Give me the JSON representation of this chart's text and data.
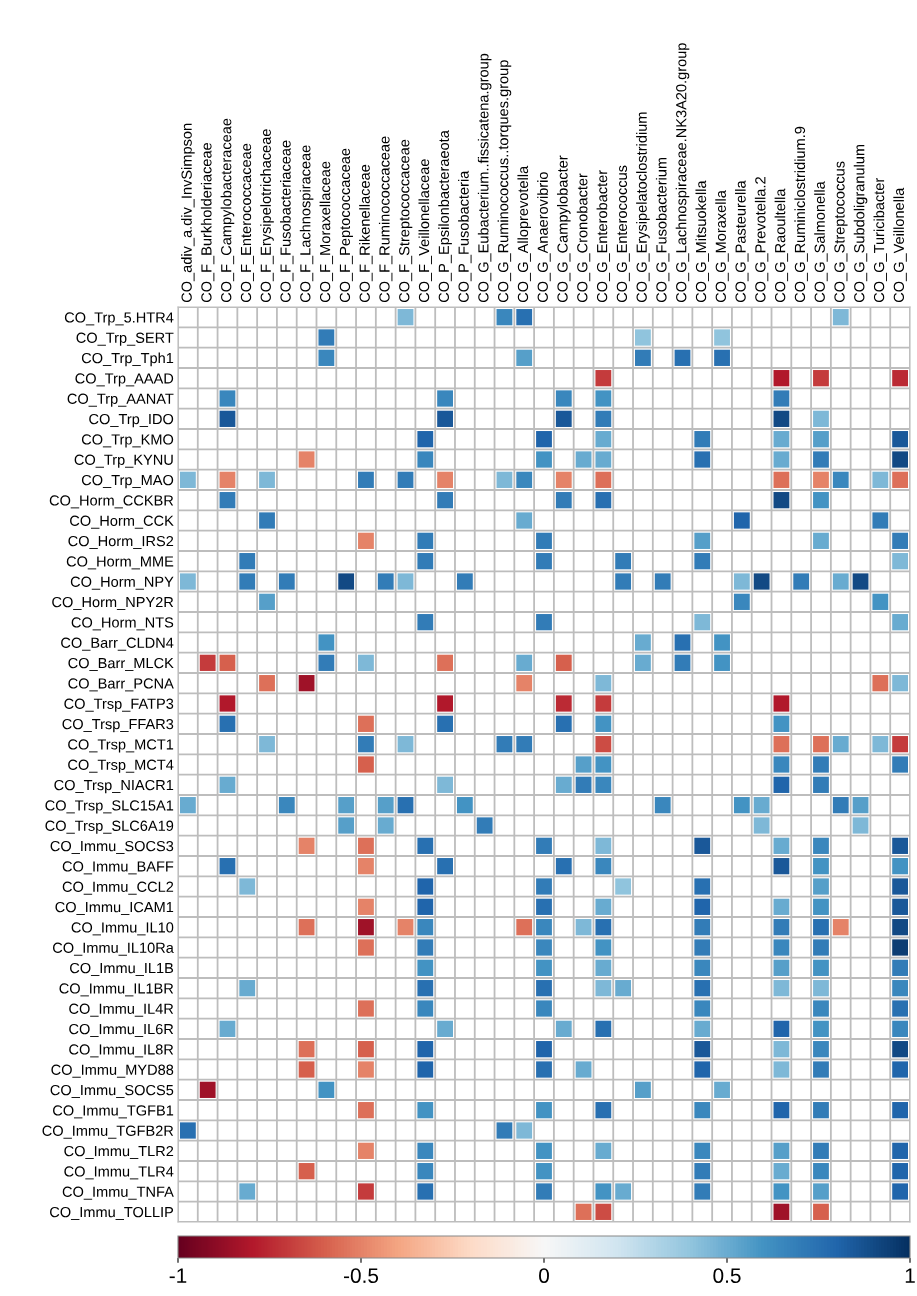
{
  "chart_data": {
    "type": "heatmap",
    "categories": [
      "CO_adiv_a.div_InvSimpson",
      "CO_F_Burkholderiaceae",
      "CO_F_Campylobacteraceae",
      "CO_F_Enterococcaceae",
      "CO_F_Erysipelotrichaceae",
      "CO_F_Fusobacteriaceae",
      "CO_F_Lachnospiraceae",
      "CO_F_Moraxellaceae",
      "CO_F_Peptococcaceae",
      "CO_F_Rikenellaceae",
      "CO_F_Ruminococcaceae",
      "CO_F_Streptococcaceae",
      "CO_F_Veillonellaceae",
      "CO_P_Epsilonbacteraeota",
      "CO_P_Fusobacteria",
      "CO_G_Eubacterium..fissicatena.group",
      "CO_G_Ruminococcus..torques.group",
      "CO_G_Alloprevotella",
      "CO_G_Anaerovibrio",
      "CO_G_Campylobacter",
      "CO_G_Cronobacter",
      "CO_G_Enterobacter",
      "CO_G_Enterococcus",
      "CO_G_Erysipelatoclostridium",
      "CO_G_Fusobacterium",
      "CO_G_Lachnospiraceae.NK3A20.group",
      "CO_G_Mitsuokella",
      "CO_G_Moraxella",
      "CO_G_Pasteurella",
      "CO_G_Prevotella.2",
      "CO_G_Raoultella",
      "CO_G_Ruminiclostridium.9",
      "CO_G_Salmonella",
      "CO_G_Streptococcus",
      "CO_G_Subdoligranulum",
      "CO_G_Turicibacter",
      "CO_G_Veillonella"
    ],
    "y_categories": [
      "CO_Trp_5.HTR4",
      "CO_Trp_SERT",
      "CO_Trp_Tph1",
      "CO_Trp_AAAD",
      "CO_Trp_AANAT",
      "CO_Trp_IDO",
      "CO_Trp_KMO",
      "CO_Trp_KYNU",
      "CO_Trp_MAO",
      "CO_Horm_CCKBR",
      "CO_Horm_CCK",
      "CO_Horm_IRS2",
      "CO_Horm_MME",
      "CO_Horm_NPY",
      "CO_Horm_NPY2R",
      "CO_Horm_NTS",
      "CO_Barr_CLDN4",
      "CO_Barr_MLCK",
      "CO_Barr_PCNA",
      "CO_Trsp_FATP3",
      "CO_Trsp_FFAR3",
      "CO_Trsp_MCT1",
      "CO_Trsp_MCT4",
      "CO_Trsp_NIACR1",
      "CO_Trsp_SLC15A1",
      "CO_Trsp_SLC6A19",
      "CO_Immu_SOCS3",
      "CO_Immu_BAFF",
      "CO_Immu_CCL2",
      "CO_Immu_ICAM1",
      "CO_Immu_IL10",
      "CO_Immu_IL10Ra",
      "CO_Immu_IL1B",
      "CO_Immu_IL1BR",
      "CO_Immu_IL4R",
      "CO_Immu_IL6R",
      "CO_Immu_IL8R",
      "CO_Immu_MYD88",
      "CO_Immu_SOCS5",
      "CO_Immu_TGFB1",
      "CO_Immu_TGFB2R",
      "CO_Immu_TLR2",
      "CO_Immu_TLR4",
      "CO_Immu_TNFA",
      "CO_Immu_TOLLIP"
    ],
    "cells": [
      [
        null,
        null,
        null,
        null,
        null,
        null,
        null,
        null,
        null,
        null,
        null,
        0.45,
        null,
        null,
        null,
        null,
        0.65,
        0.75,
        null,
        null,
        null,
        null,
        null,
        null,
        null,
        null,
        null,
        null,
        null,
        null,
        null,
        null,
        null,
        0.45,
        null,
        null,
        null
      ],
      [
        null,
        null,
        null,
        null,
        null,
        null,
        null,
        0.7,
        null,
        null,
        null,
        null,
        null,
        null,
        null,
        null,
        null,
        null,
        null,
        null,
        null,
        null,
        null,
        0.4,
        null,
        null,
        null,
        0.4,
        null,
        null,
        null,
        null,
        null,
        null,
        null,
        null,
        null
      ],
      [
        null,
        null,
        null,
        null,
        null,
        null,
        null,
        0.65,
        null,
        null,
        null,
        null,
        null,
        null,
        null,
        null,
        null,
        0.55,
        null,
        null,
        null,
        null,
        null,
        0.7,
        null,
        0.75,
        null,
        0.75,
        null,
        null,
        null,
        null,
        null,
        null,
        null,
        null,
        null
      ],
      [
        null,
        null,
        null,
        null,
        null,
        null,
        null,
        null,
        null,
        null,
        null,
        null,
        null,
        null,
        null,
        null,
        null,
        null,
        null,
        null,
        null,
        -0.7,
        null,
        null,
        null,
        null,
        null,
        null,
        null,
        null,
        -0.8,
        null,
        -0.7,
        null,
        null,
        null,
        -0.75
      ],
      [
        null,
        null,
        0.65,
        null,
        null,
        null,
        null,
        null,
        null,
        null,
        null,
        null,
        null,
        0.65,
        null,
        null,
        null,
        null,
        null,
        0.65,
        null,
        0.6,
        null,
        null,
        null,
        null,
        null,
        null,
        null,
        null,
        0.7,
        null,
        null,
        null,
        null,
        null,
        null
      ],
      [
        null,
        null,
        0.85,
        null,
        null,
        null,
        null,
        null,
        null,
        null,
        null,
        null,
        null,
        0.85,
        null,
        null,
        null,
        null,
        null,
        0.85,
        null,
        0.7,
        null,
        null,
        null,
        null,
        null,
        null,
        null,
        null,
        0.9,
        null,
        0.45,
        null,
        null,
        null,
        null
      ],
      [
        null,
        null,
        null,
        null,
        null,
        null,
        null,
        null,
        null,
        null,
        null,
        null,
        0.8,
        null,
        null,
        null,
        null,
        null,
        0.8,
        null,
        null,
        0.5,
        null,
        null,
        null,
        null,
        0.7,
        null,
        null,
        null,
        0.5,
        null,
        0.55,
        null,
        null,
        null,
        0.85
      ],
      [
        null,
        null,
        null,
        null,
        null,
        null,
        -0.5,
        null,
        null,
        null,
        null,
        null,
        0.65,
        null,
        null,
        null,
        null,
        null,
        0.6,
        null,
        0.5,
        0.5,
        null,
        null,
        null,
        null,
        0.75,
        null,
        null,
        null,
        0.5,
        null,
        0.7,
        null,
        null,
        null,
        0.9
      ],
      [
        0.45,
        null,
        -0.5,
        null,
        0.45,
        null,
        null,
        null,
        null,
        0.7,
        null,
        0.7,
        null,
        -0.5,
        null,
        null,
        0.45,
        0.65,
        null,
        -0.5,
        null,
        -0.55,
        null,
        null,
        null,
        null,
        null,
        null,
        null,
        null,
        -0.55,
        null,
        -0.5,
        0.65,
        null,
        0.45,
        -0.55
      ],
      [
        null,
        null,
        0.7,
        null,
        null,
        null,
        null,
        null,
        null,
        null,
        null,
        null,
        null,
        0.7,
        null,
        null,
        null,
        null,
        null,
        0.7,
        null,
        0.75,
        null,
        null,
        null,
        null,
        null,
        null,
        null,
        null,
        0.9,
        null,
        0.6,
        null,
        null,
        null,
        null
      ],
      [
        null,
        null,
        null,
        null,
        0.7,
        null,
        null,
        null,
        null,
        null,
        null,
        null,
        null,
        null,
        null,
        null,
        null,
        0.5,
        null,
        null,
        null,
        null,
        null,
        null,
        null,
        null,
        null,
        null,
        0.8,
        null,
        null,
        null,
        null,
        null,
        null,
        0.7,
        null
      ],
      [
        null,
        null,
        null,
        null,
        null,
        null,
        null,
        null,
        null,
        -0.5,
        null,
        null,
        0.7,
        null,
        null,
        null,
        null,
        null,
        0.7,
        null,
        null,
        null,
        null,
        null,
        null,
        null,
        0.55,
        null,
        null,
        null,
        null,
        null,
        0.5,
        null,
        null,
        null,
        0.7
      ],
      [
        null,
        null,
        null,
        0.7,
        null,
        null,
        null,
        null,
        null,
        null,
        null,
        null,
        0.7,
        null,
        null,
        null,
        null,
        null,
        0.7,
        null,
        null,
        null,
        0.7,
        null,
        null,
        null,
        0.7,
        null,
        null,
        null,
        null,
        null,
        null,
        null,
        null,
        null,
        0.45
      ],
      [
        0.45,
        null,
        null,
        0.7,
        null,
        0.7,
        null,
        null,
        0.9,
        null,
        0.7,
        0.45,
        null,
        null,
        0.7,
        null,
        null,
        null,
        null,
        null,
        null,
        null,
        0.7,
        null,
        0.7,
        null,
        null,
        null,
        0.45,
        0.9,
        null,
        0.7,
        null,
        0.5,
        0.9,
        null,
        null
      ],
      [
        null,
        null,
        null,
        null,
        0.55,
        null,
        null,
        null,
        null,
        null,
        null,
        null,
        null,
        null,
        null,
        null,
        null,
        null,
        null,
        null,
        null,
        null,
        null,
        null,
        null,
        null,
        null,
        null,
        0.65,
        null,
        null,
        null,
        null,
        null,
        null,
        0.6,
        null
      ],
      [
        null,
        null,
        null,
        null,
        null,
        null,
        null,
        null,
        null,
        null,
        null,
        null,
        0.7,
        null,
        null,
        null,
        null,
        null,
        0.7,
        null,
        null,
        null,
        null,
        null,
        null,
        null,
        0.45,
        null,
        null,
        null,
        null,
        null,
        null,
        null,
        null,
        null,
        0.5
      ],
      [
        null,
        null,
        null,
        null,
        null,
        null,
        null,
        0.6,
        null,
        null,
        null,
        null,
        null,
        null,
        null,
        null,
        null,
        null,
        null,
        null,
        null,
        null,
        null,
        0.5,
        null,
        0.75,
        null,
        0.6,
        null,
        null,
        null,
        null,
        null,
        null,
        null,
        null,
        null
      ],
      [
        null,
        -0.7,
        -0.6,
        null,
        null,
        null,
        null,
        0.7,
        null,
        0.45,
        null,
        null,
        null,
        -0.55,
        null,
        null,
        null,
        0.5,
        null,
        -0.6,
        null,
        null,
        null,
        0.5,
        null,
        0.7,
        null,
        0.6,
        null,
        null,
        null,
        null,
        null,
        null,
        null,
        null,
        null
      ],
      [
        null,
        null,
        null,
        null,
        -0.55,
        null,
        -0.85,
        null,
        null,
        null,
        null,
        null,
        null,
        null,
        null,
        null,
        null,
        -0.5,
        null,
        null,
        null,
        0.45,
        null,
        null,
        null,
        null,
        null,
        null,
        null,
        null,
        null,
        null,
        null,
        null,
        null,
        -0.55,
        0.45
      ],
      [
        null,
        null,
        -0.8,
        null,
        null,
        null,
        null,
        null,
        null,
        null,
        null,
        null,
        null,
        -0.8,
        null,
        null,
        null,
        null,
        null,
        -0.75,
        null,
        -0.7,
        null,
        null,
        null,
        null,
        null,
        null,
        null,
        null,
        -0.8,
        null,
        null,
        null,
        null,
        null,
        null
      ],
      [
        null,
        null,
        0.75,
        null,
        null,
        null,
        null,
        null,
        null,
        -0.55,
        null,
        null,
        null,
        0.75,
        null,
        null,
        null,
        null,
        null,
        0.75,
        null,
        0.6,
        null,
        null,
        null,
        null,
        null,
        null,
        null,
        null,
        0.6,
        null,
        null,
        null,
        null,
        null,
        null
      ],
      [
        null,
        null,
        null,
        null,
        0.45,
        null,
        null,
        null,
        null,
        0.7,
        null,
        0.45,
        null,
        null,
        null,
        null,
        0.7,
        0.7,
        null,
        null,
        null,
        -0.65,
        null,
        null,
        null,
        null,
        null,
        null,
        null,
        null,
        -0.55,
        null,
        -0.55,
        0.5,
        null,
        0.45,
        -0.7
      ],
      [
        null,
        null,
        null,
        null,
        null,
        null,
        null,
        null,
        null,
        -0.6,
        null,
        null,
        null,
        null,
        null,
        null,
        null,
        null,
        null,
        null,
        0.55,
        0.6,
        null,
        null,
        null,
        null,
        null,
        null,
        null,
        null,
        0.65,
        null,
        0.7,
        null,
        null,
        null,
        0.7
      ],
      [
        null,
        null,
        0.5,
        null,
        null,
        null,
        null,
        null,
        null,
        null,
        null,
        null,
        null,
        0.45,
        null,
        null,
        null,
        null,
        null,
        0.5,
        0.7,
        0.65,
        null,
        null,
        null,
        null,
        null,
        null,
        null,
        null,
        0.8,
        null,
        0.7,
        null,
        null,
        null,
        null
      ],
      [
        0.5,
        null,
        null,
        null,
        null,
        0.65,
        null,
        null,
        0.55,
        null,
        0.55,
        0.75,
        null,
        null,
        0.6,
        null,
        null,
        null,
        null,
        null,
        null,
        null,
        null,
        null,
        0.65,
        null,
        null,
        null,
        0.6,
        0.5,
        null,
        null,
        null,
        0.7,
        0.55,
        null,
        null
      ],
      [
        null,
        null,
        null,
        null,
        null,
        null,
        null,
        null,
        0.55,
        null,
        0.5,
        null,
        null,
        null,
        null,
        0.7,
        null,
        null,
        null,
        null,
        null,
        null,
        null,
        null,
        null,
        null,
        null,
        null,
        null,
        0.45,
        null,
        null,
        null,
        null,
        0.45,
        null,
        null
      ],
      [
        null,
        null,
        null,
        null,
        null,
        null,
        -0.5,
        null,
        null,
        -0.55,
        null,
        null,
        0.75,
        null,
        null,
        null,
        null,
        null,
        0.7,
        null,
        null,
        0.45,
        null,
        null,
        null,
        null,
        0.85,
        null,
        null,
        null,
        0.5,
        null,
        0.65,
        null,
        null,
        null,
        0.85
      ],
      [
        null,
        null,
        0.75,
        null,
        null,
        null,
        null,
        null,
        null,
        -0.5,
        null,
        null,
        null,
        0.75,
        null,
        null,
        null,
        null,
        null,
        0.75,
        null,
        0.65,
        null,
        null,
        null,
        null,
        null,
        null,
        null,
        null,
        0.85,
        null,
        0.6,
        null,
        null,
        null,
        0.6
      ],
      [
        null,
        null,
        null,
        0.45,
        null,
        null,
        null,
        null,
        null,
        null,
        null,
        null,
        0.8,
        null,
        null,
        null,
        null,
        null,
        0.7,
        null,
        null,
        null,
        0.4,
        null,
        null,
        null,
        0.75,
        null,
        null,
        null,
        null,
        null,
        0.55,
        null,
        null,
        null,
        0.85
      ],
      [
        null,
        null,
        null,
        null,
        null,
        null,
        null,
        null,
        null,
        -0.5,
        null,
        null,
        0.8,
        null,
        null,
        null,
        null,
        null,
        0.75,
        null,
        null,
        0.5,
        null,
        null,
        null,
        null,
        0.8,
        null,
        null,
        null,
        0.5,
        null,
        0.6,
        null,
        null,
        null,
        0.85
      ],
      [
        null,
        null,
        null,
        null,
        null,
        null,
        -0.55,
        null,
        null,
        -0.85,
        null,
        -0.5,
        0.65,
        null,
        null,
        null,
        null,
        -0.55,
        0.65,
        null,
        0.45,
        0.75,
        null,
        null,
        null,
        null,
        0.7,
        null,
        null,
        null,
        0.7,
        null,
        0.75,
        -0.5,
        null,
        null,
        0.9
      ],
      [
        null,
        null,
        null,
        null,
        null,
        null,
        null,
        null,
        null,
        -0.55,
        null,
        null,
        0.7,
        null,
        null,
        null,
        null,
        null,
        0.65,
        null,
        null,
        0.6,
        null,
        null,
        null,
        null,
        0.7,
        null,
        null,
        null,
        0.65,
        null,
        0.7,
        null,
        null,
        null,
        0.95
      ],
      [
        null,
        null,
        null,
        null,
        null,
        null,
        null,
        null,
        null,
        null,
        null,
        null,
        0.6,
        null,
        null,
        null,
        null,
        null,
        0.6,
        null,
        null,
        0.5,
        null,
        null,
        null,
        null,
        0.65,
        null,
        null,
        null,
        0.55,
        null,
        0.6,
        null,
        null,
        null,
        0.7
      ],
      [
        null,
        null,
        null,
        0.5,
        null,
        null,
        null,
        null,
        null,
        null,
        null,
        null,
        0.75,
        null,
        null,
        null,
        null,
        null,
        0.75,
        null,
        null,
        0.45,
        0.5,
        null,
        null,
        null,
        0.75,
        null,
        null,
        null,
        0.45,
        null,
        0.45,
        null,
        null,
        null,
        0.65
      ],
      [
        null,
        null,
        null,
        null,
        null,
        null,
        null,
        null,
        null,
        -0.55,
        null,
        null,
        0.65,
        null,
        null,
        null,
        null,
        null,
        0.65,
        null,
        null,
        null,
        null,
        null,
        null,
        null,
        0.65,
        null,
        null,
        null,
        null,
        null,
        0.65,
        null,
        null,
        null,
        0.75
      ],
      [
        null,
        null,
        0.5,
        null,
        null,
        null,
        null,
        null,
        null,
        null,
        null,
        null,
        null,
        0.5,
        null,
        null,
        null,
        null,
        null,
        0.5,
        null,
        0.75,
        null,
        null,
        null,
        null,
        0.5,
        null,
        null,
        null,
        0.8,
        null,
        0.6,
        null,
        null,
        null,
        0.65
      ],
      [
        null,
        null,
        null,
        null,
        null,
        null,
        -0.55,
        null,
        null,
        -0.6,
        null,
        null,
        0.8,
        null,
        null,
        null,
        null,
        null,
        0.8,
        null,
        null,
        null,
        null,
        null,
        null,
        null,
        0.85,
        null,
        null,
        null,
        0.45,
        null,
        0.65,
        null,
        null,
        null,
        0.9
      ],
      [
        null,
        null,
        null,
        null,
        null,
        null,
        -0.6,
        null,
        null,
        -0.5,
        null,
        null,
        0.8,
        null,
        null,
        null,
        null,
        null,
        0.75,
        null,
        0.5,
        null,
        null,
        null,
        null,
        null,
        0.8,
        null,
        null,
        null,
        0.45,
        null,
        0.7,
        null,
        null,
        null,
        0.8
      ],
      [
        null,
        -0.85,
        null,
        null,
        null,
        null,
        null,
        0.6,
        null,
        null,
        null,
        null,
        null,
        null,
        null,
        null,
        null,
        null,
        null,
        null,
        null,
        null,
        null,
        0.55,
        null,
        null,
        null,
        0.5,
        null,
        null,
        null,
        null,
        null,
        null,
        null,
        null,
        null
      ],
      [
        null,
        null,
        null,
        null,
        null,
        null,
        null,
        null,
        null,
        -0.55,
        null,
        null,
        0.6,
        null,
        null,
        null,
        null,
        null,
        0.6,
        null,
        null,
        0.75,
        null,
        null,
        null,
        null,
        0.65,
        null,
        null,
        null,
        0.8,
        null,
        0.7,
        null,
        null,
        null,
        0.8
      ],
      [
        0.75,
        null,
        null,
        null,
        null,
        null,
        null,
        null,
        null,
        null,
        null,
        null,
        null,
        null,
        null,
        null,
        0.7,
        0.45,
        null,
        null,
        null,
        null,
        null,
        null,
        null,
        null,
        null,
        null,
        null,
        null,
        null,
        null,
        null,
        null,
        null,
        null,
        null
      ],
      [
        null,
        null,
        null,
        null,
        null,
        null,
        null,
        null,
        null,
        -0.5,
        null,
        null,
        0.65,
        null,
        null,
        null,
        null,
        null,
        0.6,
        null,
        null,
        0.5,
        null,
        null,
        null,
        null,
        0.65,
        null,
        null,
        null,
        0.55,
        null,
        0.7,
        null,
        null,
        null,
        0.8
      ],
      [
        null,
        null,
        null,
        null,
        null,
        null,
        -0.6,
        null,
        null,
        null,
        null,
        null,
        0.65,
        null,
        null,
        null,
        null,
        null,
        0.6,
        null,
        null,
        null,
        null,
        null,
        null,
        null,
        0.7,
        null,
        null,
        null,
        0.5,
        null,
        0.65,
        null,
        null,
        null,
        0.8
      ],
      [
        null,
        null,
        null,
        0.5,
        null,
        null,
        null,
        null,
        null,
        -0.7,
        null,
        null,
        0.75,
        null,
        null,
        null,
        null,
        null,
        0.7,
        null,
        null,
        0.6,
        0.5,
        null,
        null,
        null,
        0.7,
        null,
        null,
        null,
        0.6,
        null,
        0.55,
        null,
        null,
        null,
        0.8
      ],
      [
        null,
        null,
        null,
        null,
        null,
        null,
        null,
        null,
        null,
        null,
        null,
        null,
        null,
        null,
        null,
        null,
        null,
        null,
        null,
        null,
        -0.55,
        -0.65,
        null,
        null,
        null,
        null,
        null,
        null,
        null,
        null,
        -0.85,
        null,
        -0.6,
        null,
        null,
        null,
        null
      ]
    ],
    "clim": [
      -1,
      1
    ],
    "cticks": [
      -1,
      -0.5,
      0,
      0.5,
      1
    ],
    "grid": true
  }
}
